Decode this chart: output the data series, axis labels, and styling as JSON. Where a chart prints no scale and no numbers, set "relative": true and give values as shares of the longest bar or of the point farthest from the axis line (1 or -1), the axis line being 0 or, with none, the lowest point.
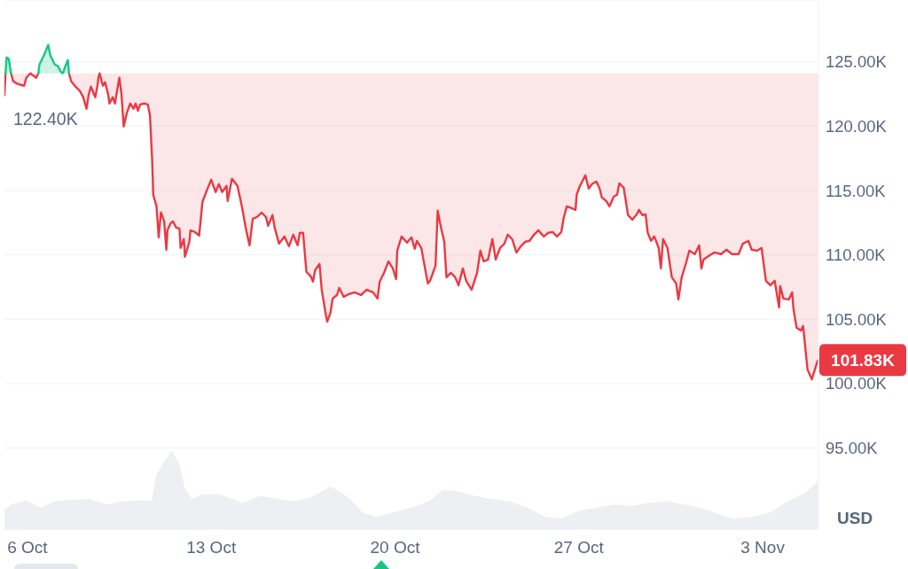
{
  "chart_data": [
    {
      "type": "line",
      "x": [
        "--10-05T03:00",
        "--10-05T04:00",
        "--10-05T05:00",
        "--10-05T07:00",
        "--10-05T09:00",
        "--10-05T11:00",
        "--10-05T15:00",
        "--10-05T21:00",
        "--10-05T23:00",
        "--10-06T02:00",
        "--10-06T03:00",
        "--10-06T04:00",
        "--10-06T06:00",
        "--10-06T08:00",
        "--10-06T10:00",
        "--10-06T11:00",
        "--10-06T15:00",
        "--10-06T19:00",
        "--10-06T21:00",
        "--10-07T01:00",
        "--10-07T04:00",
        "--10-07T06:00",
        "--10-07T07:00",
        "--10-07T08:00",
        "--10-07T09:00",
        "--10-07T10:00",
        "--10-07T13:00",
        "--10-07T14:00",
        "--10-07T16:00",
        "--10-07T20:00",
        "--10-08T00:00",
        "--10-08T03:00",
        "--10-08T06:00",
        "--10-08T08:00",
        "--10-08T10:00",
        "--10-08T14:00",
        "--10-08T16:00",
        "--10-08T17:00",
        "--10-08T18:00",
        "--10-08T19:00",
        "--10-08T20:00",
        "--10-08T21:00",
        "--10-08T23:00",
        "--10-09T02:00",
        "--10-09T03:00",
        "--10-09T06:00",
        "--10-09T08:00",
        "--10-09T12:00",
        "--10-09T14:00",
        "--10-09T16:00",
        "--10-09T19:00",
        "--10-09T22:00",
        "--10-10T01:00",
        "--10-10T03:00",
        "--10-10T05:00",
        "--10-10T07:00",
        "--10-10T11:00",
        "--10-10T14:00",
        "--10-10T16:00",
        "--10-10T18:00",
        "--10-10T19:00",
        "--10-10T22:00",
        "--10-11T00:00",
        "--10-11T02:00",
        "--10-11T03:00",
        "--10-11T05:00",
        "--10-11T07:00",
        "--10-11T08:00",
        "--10-11T11:00",
        "--10-11T13:00",
        "--10-11T16:00",
        "--10-11T19:00",
        "--10-11T20:00",
        "--10-11T23:00",
        "--10-12T00:00",
        "--10-12T04:00",
        "--10-12T05:00",
        "--10-12T09:00",
        "--10-12T13:00",
        "--10-12T16:00",
        "--10-12T20:00",
        "--10-13T00:00",
        "--10-13T04:00",
        "--10-13T07:00",
        "--10-13T10:00",
        "--10-13T14:00",
        "--10-13T15:00",
        "--10-13T19:00",
        "--10-14T00:00",
        "--10-14T04:00",
        "--10-14T08:00",
        "--10-14T11:00",
        "--10-14T14:00",
        "--10-14T18:00",
        "--10-14T22:00",
        "--10-15T02:00",
        "--10-15T04:00",
        "--10-15T08:00",
        "--10-15T10:00",
        "--10-15T14:00",
        "--10-15T19:00",
        "--10-15T23:00",
        "--10-16T03:00",
        "--10-16T07:00",
        "--10-16T09:00",
        "--10-16T12:00",
        "--10-16T15:00",
        "--10-16T19:00",
        "--10-16T21:00",
        "--10-16T23:00",
        "--10-17T03:00",
        "--10-17T05:00",
        "--10-17T09:00",
        "--10-17T10:00",
        "--10-17T13:00",
        "--10-17T15:00",
        "--10-17T19:00",
        "--10-17T21:00",
        "--10-18T01:00",
        "--10-18T06:00",
        "--10-18T11:00",
        "--10-18T17:00",
        "--10-18T22:00",
        "--10-19T04:00",
        "--10-19T08:00",
        "--10-19T10:00",
        "--10-19T14:00",
        "--10-19T18:00",
        "--10-19T22:00",
        "--10-20T01:00",
        "--10-20T02:00",
        "--10-20T06:00",
        "--10-20T11:00",
        "--10-20T15:00",
        "--10-20T18:00",
        "--10-20T20:00",
        "--10-21T00:00",
        "--10-21T03:00",
        "--10-21T06:00",
        "--10-21T08:00",
        "--10-21T11:00",
        "--10-21T13:00",
        "--10-21T15:00",
        "--10-21T18:00",
        "--10-21T21:00",
        "--10-21T23:00",
        "--10-22T03:00",
        "--10-22T07:00",
        "--10-22T10:00",
        "--10-22T14:00",
        "--10-22T17:00",
        "--10-22T22:00",
        "--10-23T03:00",
        "--10-23T06:00",
        "--10-23T09:00",
        "--10-23T13:00",
        "--10-23T17:00",
        "--10-23T20:00",
        "--10-24T00:00",
        "--10-24T04:00",
        "--10-24T07:00",
        "--10-24T11:00",
        "--10-24T15:00",
        "--10-24T19:00",
        "--10-24T23:00",
        "--10-25T03:00",
        "--10-25T07:00",
        "--10-25T11:00",
        "--10-25T16:00",
        "--10-25T20:00",
        "--10-26T00:00",
        "--10-26T04:00",
        "--10-26T08:00",
        "--10-26T10:00",
        "--10-26T13:00",
        "--10-26T17:00",
        "--10-26T21:00",
        "--10-26T22:00",
        "--10-27T01:00",
        "--10-27T06:00",
        "--10-27T09:00",
        "--10-27T12:00",
        "--10-27T16:00",
        "--10-27T19:00",
        "--10-27T21:00",
        "--10-28T01:00",
        "--10-28T04:00",
        "--10-28T08:00",
        "--10-28T11:00",
        "--10-28T13:00",
        "--10-28T17:00",
        "--10-28T21:00",
        "--10-29T01:00",
        "--10-29T05:00",
        "--10-29T07:00",
        "--10-29T10:00",
        "--10-29T13:00",
        "--10-29T15:00",
        "--10-29T18:00",
        "--10-29T21:00",
        "--10-30T01:00",
        "--10-30T03:00",
        "--10-30T05:00",
        "--10-30T09:00",
        "--10-30T13:00",
        "--10-30T17:00",
        "--10-30T19:00",
        "--10-30T22:00",
        "--10-31T02:00",
        "--10-31T05:00",
        "--10-31T10:00",
        "--10-31T14:00",
        "--10-31T16:00",
        "--10-31T18:00",
        "--11-01T00:00",
        "--11-01T04:00",
        "--11-01T10:00",
        "--11-01T15:00",
        "--11-01T20:00",
        "--11-02T02:00",
        "--11-02T06:00",
        "--11-02T11:00",
        "--11-02T14:00",
        "--11-02T19:00",
        "--11-02T23:00",
        "--11-03T03:00",
        "--11-03T07:00",
        "--11-03T11:00",
        "--11-03T15:00",
        "--11-03T16:00",
        "--11-03T19:00",
        "--11-04T00:00",
        "--11-04T03:00",
        "--11-04T04:00",
        "--11-04T07:00",
        "--11-04T11:00",
        "--11-04T13:00",
        "--11-04T17:00",
        "--11-04T21:00",
        "--11-04T23:00",
        "--11-05T02:00",
        "--11-05T03:00"
      ],
      "series": [
        {
          "color": "#ea3943",
          "values": [
            122400,
            124100,
            null,
            null,
            124100,
            123480,
            123280,
            123140,
            123760,
            124050,
            124100,
            124000,
            123900,
            123760,
            124100,
            null,
            null,
            null,
            null,
            null,
            null,
            null,
            null,
            null,
            null,
            null,
            null,
            124100,
            123480,
            123070,
            122730,
            122250,
            121350,
            122450,
            123070,
            122250,
            123140,
            123800,
            124100,
            123800,
            123420,
            123140,
            123420,
            122380,
            121760,
            122250,
            121760,
            123760,
            122450,
            119970,
            121070,
            121760,
            121350,
            121760,
            121210,
            121690,
            121760,
            121690,
            120870,
            117420,
            114670,
            113770,
            111360,
            113290,
            113090,
            112600,
            110400,
            111910,
            112470,
            112600,
            112120,
            112050,
            110540,
            111230,
            109850,
            111020,
            111910,
            111780,
            111500,
            114120,
            115010,
            115840,
            114880,
            115500,
            114880,
            115360,
            114190,
            115910,
            115360,
            113770,
            111910,
            110740,
            112810,
            112950,
            113290,
            112950,
            112260,
            113090,
            112120,
            110880,
            111430,
            110670,
            111570,
            110740,
            111710,
            111710,
            108680,
            108330,
            107920,
            108820,
            109300,
            107300,
            105230,
            104820,
            105510,
            106610,
            106890,
            107440,
            106750,
            106960,
            107090,
            106890,
            107300,
            107090,
            106610,
            107920,
            108610,
            109500,
            108950,
            108130,
            110330,
            111430,
            110950,
            111360,
            110470,
            111090,
            110540,
            109160,
            107780,
            107990,
            108680,
            109160,
            113430,
            112120,
            111020,
            108260,
            108610,
            108260,
            107640,
            108950,
            107990,
            107300,
            108610,
            110330,
            109500,
            109640,
            111230,
            109640,
            110540,
            110880,
            111570,
            111230,
            110190,
            110670,
            111020,
            111090,
            111570,
            111910,
            111430,
            111710,
            111780,
            111430,
            111780,
            112810,
            113770,
            113640,
            113500,
            114670,
            115360,
            116180,
            115150,
            115500,
            115700,
            115150,
            114460,
            114190,
            113770,
            114530,
            114670,
            115560,
            115220,
            113090,
            112740,
            113150,
            113500,
            113090,
            113150,
            111710,
            111090,
            111430,
            110540,
            108950,
            111230,
            110540,
            108260,
            107780,
            106540,
            108260,
            109370,
            110330,
            110060,
            110740,
            108950,
            109640,
            109990,
            110190,
            110060,
            110400,
            110060,
            110060,
            110880,
            111090,
            110400,
            110330,
            110540,
            107990,
            107640,
            107990,
            105920,
            107580,
            106610,
            106540,
            107090,
            105920,
            104340,
            104130,
            104480,
            101100,
            100340,
            100900,
            101720,
            101830
          ],
          "lower": [
            122400,
            124100,
            null,
            null,
            124100,
            123480,
            123280,
            123140,
            123760,
            124050,
            124100,
            124000,
            123900,
            123760,
            124100,
            null,
            null,
            null,
            null,
            null,
            null,
            null,
            null,
            null,
            null,
            null,
            null,
            124100,
            123480,
            123070,
            122730,
            122250,
            121350,
            122450,
            123070,
            122250,
            123140,
            123800,
            124100,
            123800,
            123420,
            123140,
            123420,
            122380,
            121760,
            122250,
            121760,
            123760,
            122450,
            119970,
            121070,
            121760,
            121350,
            121760,
            121210,
            121690,
            121760,
            121690,
            120870,
            117420,
            114670,
            113770,
            111360,
            113290,
            113090,
            112600,
            110400,
            111910,
            112470,
            112600,
            112120,
            112050,
            110540,
            111230,
            109850,
            111020,
            111910,
            111780,
            111500,
            114120,
            115010,
            115840,
            114880,
            115500,
            114880,
            115360,
            114190,
            115910,
            115360,
            113770,
            111910,
            110740,
            112810,
            112950,
            113290,
            112950,
            112260,
            113090,
            112120,
            110880,
            111430,
            110670,
            111570,
            110740,
            111710,
            111710,
            108680,
            108330,
            107920,
            108820,
            109300,
            107300,
            105230,
            104820,
            105510,
            106610,
            106890,
            107440,
            106750,
            106960,
            107090,
            106890,
            107300,
            107090,
            106610,
            107920,
            108610,
            109500,
            108950,
            108130,
            110330,
            111430,
            110950,
            111360,
            110470,
            111090,
            110540,
            109160,
            107780,
            107990,
            108680,
            109160,
            113430,
            112120,
            111020,
            108260,
            108610,
            108260,
            107640,
            108950,
            107990,
            107300,
            108610,
            110330,
            109500,
            109640,
            111230,
            109640,
            110540,
            110880,
            111570,
            111230,
            110190,
            110670,
            111020,
            111090,
            111570,
            111910,
            111430,
            111710,
            111780,
            111430,
            111780,
            112810,
            113770,
            113640,
            113500,
            114670,
            115360,
            116180,
            115150,
            115500,
            115700,
            115150,
            114460,
            114190,
            113770,
            114530,
            114670,
            115560,
            115220,
            113090,
            112740,
            113150,
            113500,
            113090,
            113150,
            111710,
            111090,
            111430,
            110540,
            108950,
            111230,
            110540,
            108260,
            107780,
            106540,
            108260,
            109370,
            110330,
            110060,
            110740,
            108950,
            109640,
            109990,
            110190,
            110060,
            110400,
            110060,
            110060,
            110880,
            111090,
            110400,
            110330,
            110540,
            107990,
            107640,
            107990,
            105920,
            107580,
            106610,
            106540,
            107090,
            105920,
            104340,
            104130,
            104480,
            101100,
            100340,
            100900,
            101720,
            101830
          ],
          "upper": [
            124100,
            124100,
            null,
            null,
            124100,
            124100,
            124100,
            124100,
            124100,
            124100,
            124100,
            124100,
            124100,
            124100,
            124100,
            null,
            null,
            null,
            null,
            null,
            null,
            null,
            null,
            null,
            null,
            null,
            null,
            124100,
            124100,
            124100,
            124100,
            124100,
            124100,
            124100,
            124100,
            124100,
            124100,
            124100,
            124100,
            124100,
            124100,
            124100,
            124100,
            124100,
            124100,
            124100,
            124100,
            124100,
            124100,
            124100,
            124100,
            124100,
            124100,
            124100,
            124100,
            124100,
            124100,
            124100,
            124100,
            124100,
            124100,
            124100,
            124100,
            124100,
            124100,
            124100,
            124100,
            124100,
            124100,
            124100,
            124100,
            124100,
            124100,
            124100,
            124100,
            124100,
            124100,
            124100,
            124100,
            124100,
            124100,
            124100,
            124100,
            124100,
            124100,
            124100,
            124100,
            124100,
            124100,
            124100,
            124100,
            124100,
            124100,
            124100,
            124100,
            124100,
            124100,
            124100,
            124100,
            124100,
            124100,
            124100,
            124100,
            124100,
            124100,
            124100,
            124100,
            124100,
            124100,
            124100,
            124100,
            124100,
            124100,
            124100,
            124100,
            124100,
            124100,
            124100,
            124100,
            124100,
            124100,
            124100,
            124100,
            124100,
            124100,
            124100,
            124100,
            124100,
            124100,
            124100,
            124100,
            124100,
            124100,
            124100,
            124100,
            124100,
            124100,
            124100,
            124100,
            124100,
            124100,
            124100,
            124100,
            124100,
            124100,
            124100,
            124100,
            124100,
            124100,
            124100,
            124100,
            124100,
            124100,
            124100,
            124100,
            124100,
            124100,
            124100,
            124100,
            124100,
            124100,
            124100,
            124100,
            124100,
            124100,
            124100,
            124100,
            124100,
            124100,
            124100,
            124100,
            124100,
            124100,
            124100,
            124100,
            124100,
            124100,
            124100,
            124100,
            124100,
            124100,
            124100,
            124100,
            124100,
            124100,
            124100,
            124100,
            124100,
            124100,
            124100,
            124100,
            124100,
            124100,
            124100,
            124100,
            124100,
            124100,
            124100,
            124100,
            124100,
            124100,
            124100,
            124100,
            124100,
            124100,
            124100,
            124100,
            124100,
            124100,
            124100,
            124100,
            124100,
            124100,
            124100,
            124100,
            124100,
            124100,
            124100,
            124100,
            124100,
            124100,
            124100,
            124100,
            124100,
            124100,
            124100,
            124100,
            124100,
            124100,
            124100,
            124100,
            124100,
            124100,
            124100,
            124100,
            124100,
            124100,
            124100,
            124100,
            124100,
            124100,
            124100
          ]
        },
        {
          "color": "#16c784",
          "x": [
            "--10-05T04:00",
            "--10-05T05:00",
            "--10-05T07:00",
            "--10-05T09:00",
            "--10-05T11:00",
            "--10-06T10:00",
            "--10-06T11:00",
            "--10-06T15:00",
            "--10-06T19:00",
            "--10-06T21:00",
            "--10-07T01:00",
            "--10-07T04:00",
            "--10-07T06:00",
            "--10-07T07:00",
            "--10-07T08:00",
            "--10-07T09:00",
            "--10-07T10:00",
            "--10-07T13:00",
            "--10-07T14:00"
          ],
          "values": [
            124100,
            125340,
            125210,
            124100,
            null,
            124100,
            124790,
            125480,
            126310,
            125480,
            124790,
            124660,
            124310,
            124200,
            124100,
            124200,
            124520,
            125140,
            124100
          ],
          "lower": [
            124100,
            124100,
            124100,
            124100,
            null,
            124100,
            124100,
            124100,
            124100,
            124100,
            124100,
            124100,
            124100,
            124100,
            124100,
            124100,
            124100,
            124100,
            124100
          ],
          "upper": [
            124100,
            125340,
            125210,
            124100,
            null,
            124100,
            124790,
            125480,
            126310,
            125480,
            124790,
            124660,
            124310,
            124200,
            124100,
            124200,
            124520,
            125140,
            124100
          ]
        }
      ],
      "xlim": [
        "--10-05T03:00",
        "--11-05T03:00"
      ],
      "xticks": [
        {
          "value": "--10-06",
          "label": "6 Oct"
        },
        {
          "value": "--10-13",
          "label": "13 Oct"
        },
        {
          "value": "--10-20",
          "label": "20 Oct"
        },
        {
          "value": "--10-27",
          "label": "27 Oct"
        },
        {
          "value": "--11-03",
          "label": "3 Nov"
        }
      ],
      "ylim": [
        88700,
        129800
      ],
      "yticks": [
        {
          "value": 95000,
          "label": "95.00K"
        },
        {
          "value": 100000,
          "label": "100.00K"
        },
        {
          "value": 105000,
          "label": "105.00K"
        },
        {
          "value": 110000,
          "label": "110.00K"
        },
        {
          "value": 115000,
          "label": "115.00K"
        },
        {
          "value": 120000,
          "label": "120.00K"
        },
        {
          "value": 125000,
          "label": "125.00K"
        }
      ],
      "ylabel": "USD",
      "grid": "y",
      "annotations": [
        {
          "text": "122.40K",
          "x": "--10-05T03:00",
          "y": 122400
        },
        {
          "text": "101.83K",
          "x": "--11-05T03:00",
          "y": 101830
        }
      ]
    },
    {
      "type": "area",
      "relative": true,
      "color": "#edeff3",
      "x": [
        "--10-05T03:00",
        "--10-05T09:00",
        "--10-05T23:00",
        "--10-06T12:00",
        "--10-07T01:00",
        "--10-07T14:00",
        "--10-08T09:00",
        "--10-09T01:00",
        "--10-09T14:00",
        "--10-10T06:00",
        "--10-10T18:00",
        "--10-10T22:00",
        "--10-11T06:00",
        "--10-11T12:00",
        "--10-11T19:00",
        "--10-11T23:00",
        "--10-12T06:00",
        "--10-12T16:00",
        "--10-13T08:00",
        "--10-13T19:00",
        "--10-14T05:00",
        "--10-14T21:00",
        "--10-15T13:00",
        "--10-16T05:00",
        "--10-16T21:00",
        "--10-17T13:00",
        "--10-17T23:00",
        "--10-18T07:00",
        "--10-18T18:00",
        "--10-19T07:00",
        "--10-19T23:00",
        "--10-20T15:00",
        "--10-21T07:00",
        "--10-21T20:00",
        "--10-22T09:00",
        "--10-23T01:00",
        "--10-23T17:00",
        "--10-24T09:00",
        "--10-25T01:00",
        "--10-25T17:00",
        "--10-26T08:00",
        "--10-27T00:00",
        "--10-27T16:00",
        "--10-28T08:00",
        "--10-29T00:00",
        "--10-29T16:00",
        "--10-30T08:00",
        "--10-31T00:00",
        "--10-31T15:00",
        "--11-01T07:00",
        "--11-01T21:00",
        "--11-02T15:00",
        "--11-03T07:00",
        "--11-03T23:00",
        "--11-04T15:00",
        "--11-05T01:00",
        "--11-05T03:00"
      ],
      "values": [
        0.23,
        0.31,
        0.36,
        0.27,
        0.35,
        0.37,
        0.38,
        0.31,
        0.35,
        0.36,
        0.36,
        0.69,
        0.88,
        1,
        0.81,
        0.54,
        0.38,
        0.44,
        0.44,
        0.38,
        0.33,
        0.42,
        0.38,
        0.35,
        0.41,
        0.54,
        0.46,
        0.38,
        0.21,
        0.15,
        0.21,
        0.27,
        0.35,
        0.5,
        0.48,
        0.42,
        0.38,
        0.35,
        0.27,
        0.15,
        0.13,
        0.23,
        0.27,
        0.31,
        0.29,
        0.33,
        0.35,
        0.31,
        0.27,
        0.19,
        0.13,
        0.15,
        0.21,
        0.35,
        0.46,
        0.58,
        0.62
      ],
      "xlim": [
        "--10-05T03:00",
        "--11-05T03:00"
      ],
      "xticks": [
        {
          "value": "--10-06",
          "label": "6 Oct"
        },
        {
          "value": "--10-13",
          "label": "13 Oct"
        },
        {
          "value": "--10-20",
          "label": "20 Oct"
        },
        {
          "value": "--10-27",
          "label": "27 Oct"
        },
        {
          "value": "--11-03",
          "label": "3 Nov"
        }
      ],
      "tick_labels": false
    }
  ]
}
